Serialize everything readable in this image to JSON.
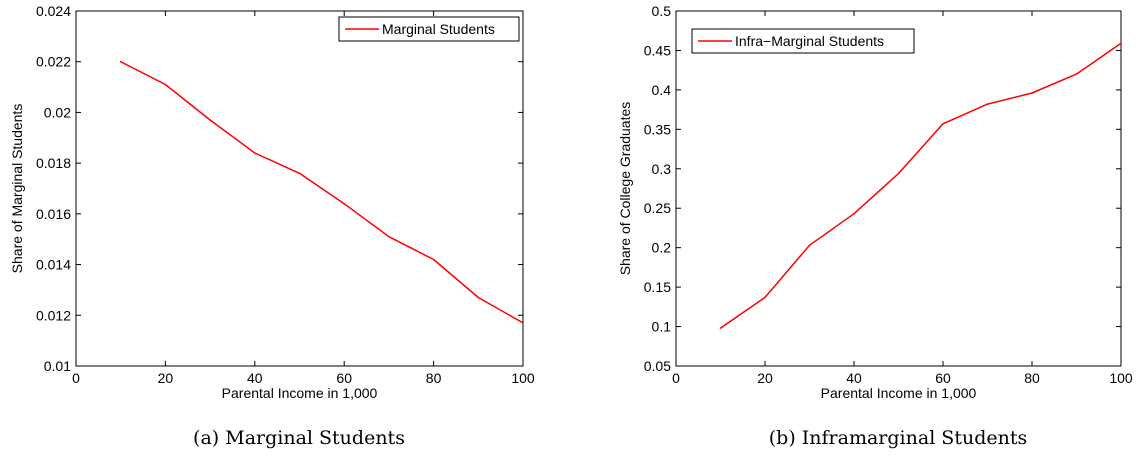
{
  "chart_data": [
    {
      "type": "line",
      "caption": "(a) Marginal Students",
      "xlabel": "Parental Income in 1,000",
      "ylabel": "Share of Marginal Students",
      "xlim": [
        0,
        100
      ],
      "ylim": [
        0.01,
        0.024
      ],
      "xticks": [
        0,
        20,
        40,
        60,
        80,
        100
      ],
      "yticks": [
        0.01,
        0.012,
        0.014,
        0.016,
        0.018,
        0.02,
        0.022,
        0.024
      ],
      "legend_position": "top-right",
      "grid": false,
      "series": [
        {
          "name": "Marginal Students",
          "color": "#ff0000",
          "x": [
            10,
            20,
            30,
            40,
            50,
            60,
            70,
            80,
            90,
            100
          ],
          "y": [
            0.022,
            0.0211,
            0.0197,
            0.0184,
            0.0176,
            0.0164,
            0.0151,
            0.0142,
            0.0127,
            0.0117
          ]
        }
      ]
    },
    {
      "type": "line",
      "caption": "(b) Inframarginal Students",
      "xlabel": "Parental Income in 1,000",
      "ylabel": "Share of College Graduates",
      "xlim": [
        0,
        100
      ],
      "ylim": [
        0.05,
        0.5
      ],
      "xticks": [
        0,
        20,
        40,
        60,
        80,
        100
      ],
      "yticks": [
        0.05,
        0.1,
        0.15,
        0.2,
        0.25,
        0.3,
        0.35,
        0.4,
        0.45,
        0.5
      ],
      "legend_position": "top-left",
      "grid": false,
      "series": [
        {
          "name": "Infra−Marginal Students",
          "color": "#ff0000",
          "x": [
            10,
            20,
            30,
            40,
            50,
            60,
            70,
            80,
            90,
            100
          ],
          "y": [
            0.098,
            0.137,
            0.203,
            0.243,
            0.294,
            0.357,
            0.382,
            0.396,
            0.42,
            0.459
          ]
        }
      ]
    }
  ]
}
